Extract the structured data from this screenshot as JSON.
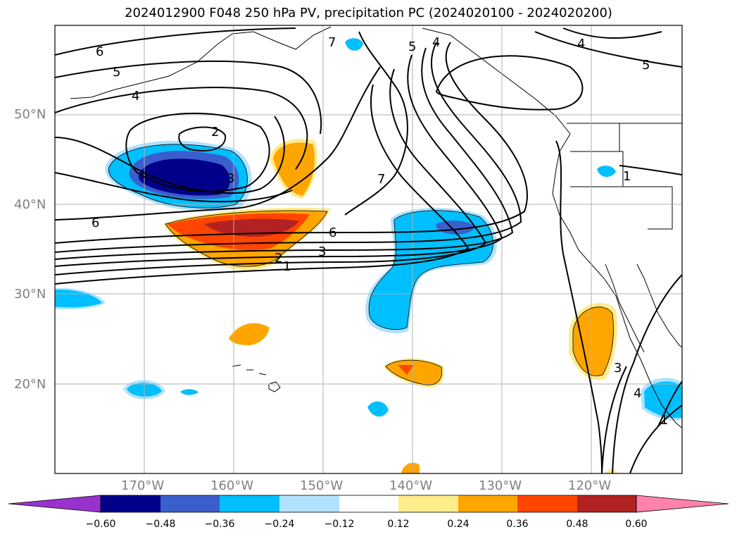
{
  "title": "2024012900 F048 250 hPa PV, precipitation PC (2024020100 - 2024020200)",
  "map": {
    "projection": "PlateCarree",
    "lon_range": [
      "180°W",
      "110°W"
    ],
    "lat_range": [
      "10°N",
      "60°N"
    ],
    "lat_labels": [
      "50°N",
      "40°N",
      "30°N",
      "20°N"
    ],
    "lon_labels": [
      "170°W",
      "160°W",
      "150°W",
      "140°W",
      "130°W",
      "120°W"
    ],
    "grid": true
  },
  "pv_contour_labels": [
    "6",
    "5",
    "4",
    "2",
    "3",
    "6",
    "6",
    "3",
    "2",
    "1",
    "7",
    "7",
    "5",
    "4",
    "4",
    "5",
    "1",
    "3",
    "4",
    "1"
  ],
  "colorbar": {
    "ticks": [
      "−0.60",
      "−0.48",
      "−0.36",
      "−0.24",
      "−0.12",
      "0.12",
      "0.24",
      "0.36",
      "0.48",
      "0.60"
    ],
    "colors": [
      "#9932cc",
      "#00008b",
      "#3a5fcd",
      "#00bfff",
      "#b0e2ff",
      "#ffffff",
      "#ffec8b",
      "#ffa500",
      "#ff4500",
      "#b22222",
      "#ff82ab"
    ]
  }
}
